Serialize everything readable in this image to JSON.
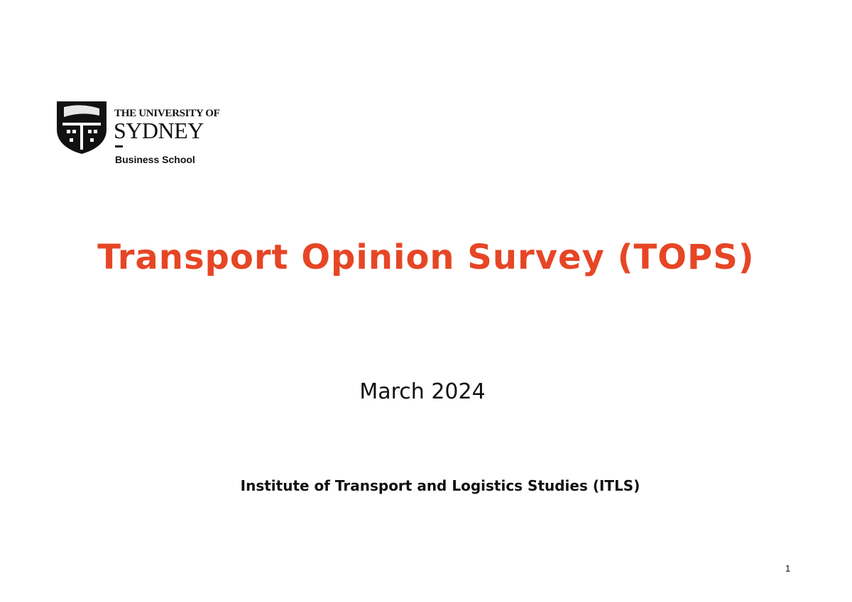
{
  "logo": {
    "line1": "THE UNIVERSITY OF",
    "line2": "SYDNEY",
    "school": "Business School"
  },
  "title": "Transport Opinion Survey (TOPS)",
  "date": "March 2024",
  "institute": "Institute of Transport and Logistics Studies (ITLS)",
  "page_number": "1"
}
